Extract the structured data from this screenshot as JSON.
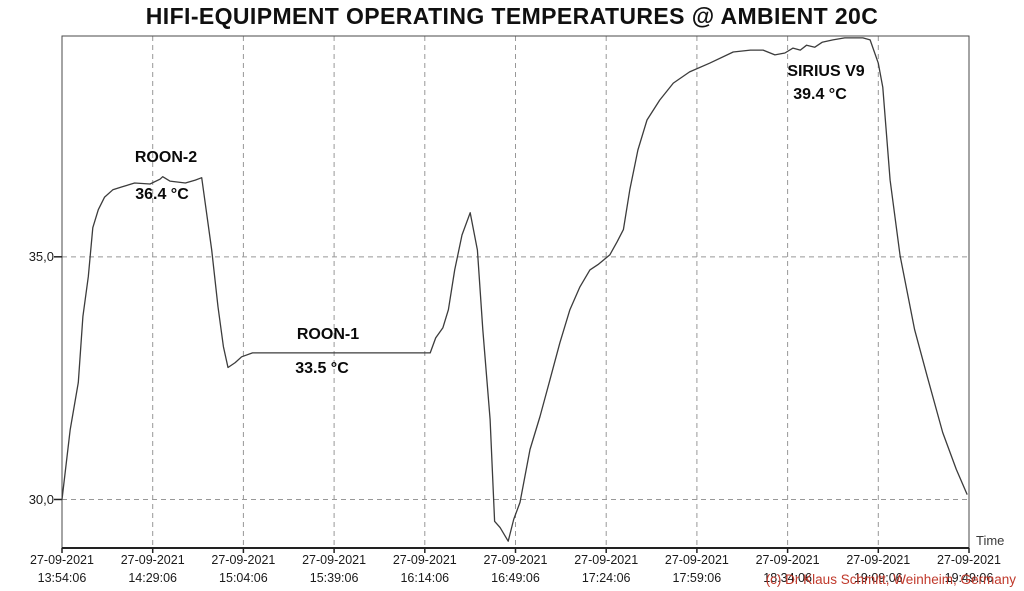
{
  "title": "HIFI-EQUIPMENT OPERATING TEMPERATURES @ AMBIENT 20C",
  "watermark": "(c) Dr Klaus Schmitt, Weinheim, Germany",
  "colors": {
    "line": "#3c3c3c",
    "grid": "#989898",
    "border": "#4a4a4a",
    "axis": "#222222",
    "text": "#1a1a1a",
    "watermark": "#c0392b"
  },
  "chart_data": {
    "type": "line",
    "title": "HIFI-EQUIPMENT OPERATING TEMPERATURES @ AMBIENT 20C",
    "xlabel": "Time",
    "ylabel": "",
    "grid": "dashed",
    "legend_position": "none",
    "ylim": [
      29.0,
      39.55
    ],
    "y_ticks": [
      {
        "value": 35.0,
        "label": "35,0"
      },
      {
        "value": 30.0,
        "label": "30,0"
      }
    ],
    "x_ticks": [
      {
        "date": "27-09-2021",
        "time": "13:54:06"
      },
      {
        "date": "27-09-2021",
        "time": "14:29:06"
      },
      {
        "date": "27-09-2021",
        "time": "15:04:06"
      },
      {
        "date": "27-09-2021",
        "time": "15:39:06"
      },
      {
        "date": "27-09-2021",
        "time": "16:14:06"
      },
      {
        "date": "27-09-2021",
        "time": "16:49:06"
      },
      {
        "date": "27-09-2021",
        "time": "17:24:06"
      },
      {
        "date": "27-09-2021",
        "time": "17:59:06"
      },
      {
        "date": "27-09-2021",
        "time": "18:34:06"
      },
      {
        "date": "27-09-2021",
        "time": "19:09:06"
      },
      {
        "date": "27-09-2021",
        "time": "19:49:06"
      }
    ],
    "annotations": [
      {
        "label": "ROON-2",
        "value": "36.4 °C"
      },
      {
        "label": "ROON-1",
        "value": "33.5 °C"
      },
      {
        "label": "SIRIUS V9",
        "value": "39.4 °C"
      }
    ],
    "series": [
      {
        "name": "equipment-temperature",
        "points_format": "[x_fraction_of_axis, temperature_C]",
        "points": [
          [
            0.0,
            30.0
          ],
          [
            0.009,
            31.44
          ],
          [
            0.018,
            32.41
          ],
          [
            0.023,
            33.77
          ],
          [
            0.029,
            34.59
          ],
          [
            0.034,
            35.6
          ],
          [
            0.04,
            35.97
          ],
          [
            0.047,
            36.23
          ],
          [
            0.056,
            36.38
          ],
          [
            0.066,
            36.44
          ],
          [
            0.08,
            36.52
          ],
          [
            0.097,
            36.5
          ],
          [
            0.108,
            36.6
          ],
          [
            0.111,
            36.65
          ],
          [
            0.119,
            36.56
          ],
          [
            0.136,
            36.52
          ],
          [
            0.147,
            36.58
          ],
          [
            0.154,
            36.63
          ],
          [
            0.165,
            35.14
          ],
          [
            0.172,
            33.97
          ],
          [
            0.178,
            33.15
          ],
          [
            0.183,
            32.72
          ],
          [
            0.191,
            32.82
          ],
          [
            0.198,
            32.94
          ],
          [
            0.21,
            33.02
          ],
          [
            0.406,
            33.02
          ],
          [
            0.412,
            33.33
          ],
          [
            0.42,
            33.54
          ],
          [
            0.426,
            33.91
          ],
          [
            0.433,
            34.73
          ],
          [
            0.441,
            35.45
          ],
          [
            0.45,
            35.91
          ],
          [
            0.458,
            35.14
          ],
          [
            0.464,
            33.5
          ],
          [
            0.472,
            31.65
          ],
          [
            0.477,
            29.55
          ],
          [
            0.483,
            29.42
          ],
          [
            0.492,
            29.14
          ],
          [
            0.498,
            29.59
          ],
          [
            0.505,
            29.94
          ],
          [
            0.516,
            31.03
          ],
          [
            0.527,
            31.71
          ],
          [
            0.538,
            32.47
          ],
          [
            0.549,
            33.23
          ],
          [
            0.56,
            33.91
          ],
          [
            0.571,
            34.38
          ],
          [
            0.582,
            34.73
          ],
          [
            0.591,
            34.84
          ],
          [
            0.604,
            35.04
          ],
          [
            0.612,
            35.31
          ],
          [
            0.619,
            35.56
          ],
          [
            0.626,
            36.38
          ],
          [
            0.635,
            37.2
          ],
          [
            0.645,
            37.82
          ],
          [
            0.659,
            38.23
          ],
          [
            0.674,
            38.58
          ],
          [
            0.692,
            38.81
          ],
          [
            0.714,
            38.99
          ],
          [
            0.74,
            39.22
          ],
          [
            0.759,
            39.26
          ],
          [
            0.773,
            39.26
          ],
          [
            0.786,
            39.16
          ],
          [
            0.797,
            39.2
          ],
          [
            0.806,
            39.3
          ],
          [
            0.814,
            39.26
          ],
          [
            0.821,
            39.36
          ],
          [
            0.83,
            39.32
          ],
          [
            0.838,
            39.42
          ],
          [
            0.85,
            39.47
          ],
          [
            0.863,
            39.51
          ],
          [
            0.883,
            39.51
          ],
          [
            0.891,
            39.47
          ],
          [
            0.9,
            38.99
          ],
          [
            0.905,
            38.49
          ],
          [
            0.913,
            36.58
          ],
          [
            0.924,
            35.02
          ],
          [
            0.94,
            33.5
          ],
          [
            0.954,
            32.53
          ],
          [
            0.971,
            31.38
          ],
          [
            0.986,
            30.62
          ],
          [
            0.998,
            30.1
          ]
        ]
      }
    ]
  }
}
